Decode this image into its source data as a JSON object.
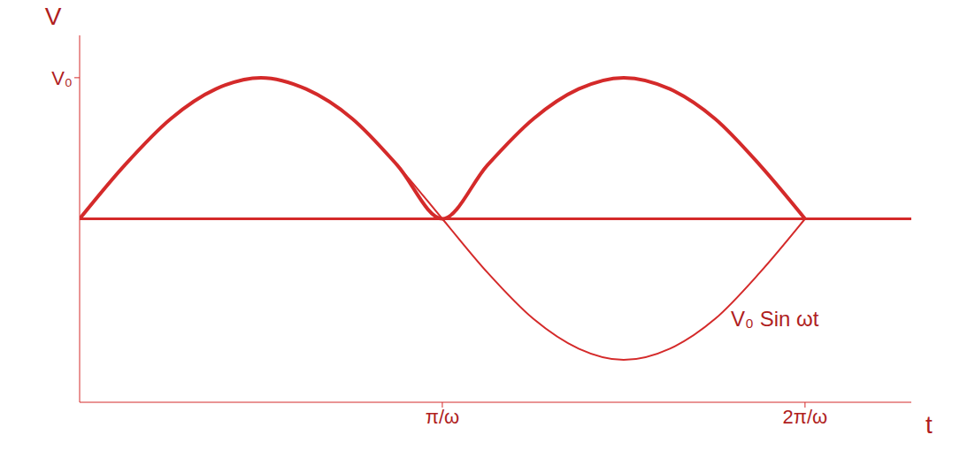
{
  "chart_data": {
    "type": "line",
    "x_label": "t",
    "y_label": "V",
    "x": [
      0,
      0.39,
      0.79,
      1.18,
      1.57,
      1.96,
      2.36,
      2.75,
      3.14,
      3.53,
      3.93,
      4.32,
      4.71,
      5.11,
      5.5,
      5.89,
      6.28
    ],
    "series": [
      {
        "name": "V₀ Sin ωt",
        "color": "#d42a2a",
        "values": [
          0,
          0.38,
          0.71,
          0.92,
          1,
          0.92,
          0.71,
          0.38,
          0,
          -0.38,
          -0.71,
          -0.92,
          -1,
          -0.92,
          -0.71,
          -0.38,
          0
        ]
      },
      {
        "color": "#d42a2a",
        "values": [
          0,
          0.38,
          0.71,
          0.92,
          1,
          0.92,
          0.71,
          0.38,
          0,
          0.38,
          0.71,
          0.92,
          1,
          0.92,
          0.71,
          0.38,
          0
        ]
      }
    ],
    "xlim": [
      0,
      7.2
    ],
    "xticks": [
      {
        "value": 3.14,
        "label": "π/ω"
      },
      {
        "value": 6.28,
        "label": "2π/ω"
      }
    ],
    "ylim": [
      -1.3,
      1.3
    ],
    "yticks": [
      {
        "value": 1,
        "label": "V₀"
      }
    ],
    "grid": false
  }
}
